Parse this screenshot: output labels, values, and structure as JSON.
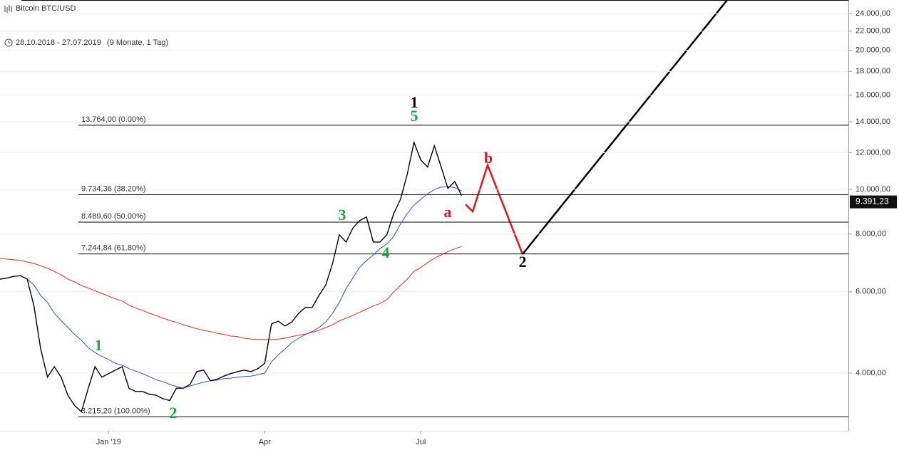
{
  "chart_data": {
    "type": "line",
    "title": "Bitcoin BTC/USD",
    "date_range": "28.10.2018 - 27.07.2019",
    "period": "(9 Monate, 1 Tag)",
    "log_scale": true,
    "grid": true,
    "categories": [
      null,
      null,
      null,
      null,
      null,
      null,
      null,
      null,
      null,
      null,
      null,
      null,
      null,
      null,
      null,
      null,
      "Jan '19",
      null,
      null,
      null,
      null,
      null,
      null,
      null,
      null,
      null,
      null,
      null,
      null,
      null,
      null,
      null,
      null,
      null,
      null,
      null,
      null,
      null,
      null,
      "Apr",
      null,
      null,
      null,
      null,
      null,
      null,
      null,
      null,
      null,
      null,
      null,
      null,
      null,
      null,
      null,
      null,
      null,
      null,
      null,
      null,
      null,
      null,
      "Jul",
      null,
      null,
      null,
      null,
      null,
      null
    ],
    "series": [
      {
        "color": "#000000",
        "values": [
          6390,
          6420,
          6480,
          6500,
          6390,
          5590,
          4510,
          3920,
          4130,
          3920,
          3580,
          3400,
          3300,
          3710,
          4130,
          3920,
          3990,
          4060,
          4130,
          3710,
          3650,
          3650,
          3600,
          3580,
          3520,
          3490,
          3710,
          3710,
          3780,
          4030,
          4060,
          3850,
          3880,
          3940,
          3990,
          4030,
          4060,
          4030,
          4090,
          4200,
          5110,
          5180,
          5060,
          5160,
          5390,
          5550,
          5550,
          5890,
          6210,
          6910,
          7970,
          7690,
          8250,
          8560,
          8710,
          7690,
          7690,
          7970,
          8860,
          9510,
          10770,
          12640,
          11570,
          11180,
          12420,
          11180,
          10040,
          10400,
          9690
        ]
      },
      {
        "color": "#2b4fe0",
        "values": [
          null,
          null,
          null,
          null,
          6390,
          6210,
          5890,
          5690,
          5390,
          5200,
          5020,
          4850,
          4710,
          4540,
          4430,
          4350,
          4280,
          4200,
          4160,
          4090,
          4040,
          3990,
          3930,
          3870,
          3830,
          3780,
          3740,
          3710,
          3750,
          3790,
          3820,
          3850,
          3860,
          3890,
          3900,
          3920,
          3930,
          3940,
          3970,
          4000,
          4230,
          4380,
          4510,
          4660,
          4760,
          4850,
          4920,
          5020,
          5160,
          5390,
          5690,
          6100,
          6430,
          6780,
          7010,
          7210,
          7440,
          7610,
          7910,
          8410,
          8860,
          9240,
          9510,
          9780,
          9990,
          10110,
          10140,
          10080,
          9930
        ]
      },
      {
        "color": "#e0301e",
        "values": [
          7090,
          7060,
          7040,
          7010,
          6960,
          6910,
          6830,
          6740,
          6640,
          6530,
          6390,
          6300,
          6190,
          6110,
          6030,
          5950,
          5870,
          5790,
          5730,
          5610,
          5530,
          5470,
          5390,
          5330,
          5260,
          5200,
          5150,
          5090,
          5040,
          4990,
          4950,
          4920,
          4880,
          4850,
          4810,
          4800,
          4760,
          4740,
          4730,
          4730,
          4730,
          4740,
          4760,
          4800,
          4830,
          4860,
          4900,
          4950,
          5020,
          5090,
          5190,
          5260,
          5330,
          5420,
          5500,
          5590,
          5660,
          5770,
          5990,
          6190,
          6390,
          6640,
          6770,
          6940,
          7090,
          7210,
          7330,
          7430,
          7520
        ]
      }
    ],
    "ylim": [
      3000,
      25700
    ],
    "yticks": [
      {
        "value": 4000,
        "label": "4.000,00"
      },
      {
        "value": 6000,
        "label": "6.000,00"
      },
      {
        "value": 8000,
        "label": "8.000,00"
      },
      {
        "value": 10000,
        "label": "10.000,00"
      },
      {
        "value": 12000,
        "label": "12.000,00"
      },
      {
        "value": 14000,
        "label": "14.000,00"
      },
      {
        "value": 16000,
        "label": "16.000,00"
      },
      {
        "value": 18000,
        "label": "18.000,00"
      },
      {
        "value": 20000,
        "label": "20.000,00"
      },
      {
        "value": 22000,
        "label": "22.000,00"
      },
      {
        "value": 24000,
        "label": "24.000,00"
      }
    ],
    "last_price": {
      "value": 9391.23,
      "label": "9.391,23"
    },
    "fib_levels": [
      {
        "value": 13764,
        "label": "13.764,00 (0.00%)"
      },
      {
        "value": 9734.36,
        "label": "9.734,36 (38.20%)"
      },
      {
        "value": 8489.6,
        "label": "8.489,60 (50.00%)"
      },
      {
        "value": 7244.84,
        "label": "7.244,84 (61.80%)"
      },
      {
        "value": 3215.2,
        "label": "3.215,20 (100.00%)"
      }
    ],
    "annotations": [
      {
        "text": "1",
        "color": "#000000"
      },
      {
        "text": "5",
        "color": "#22a03c"
      },
      {
        "text": "3",
        "color": "#22a03c"
      },
      {
        "text": "4",
        "color": "#22a03c"
      },
      {
        "text": "a",
        "color": "#e0141e"
      },
      {
        "text": "b",
        "color": "#e0141e"
      },
      {
        "text": "2",
        "color": "#000000"
      },
      {
        "text": "1",
        "color": "#22a03c"
      },
      {
        "text": "2",
        "color": "#22a03c"
      }
    ]
  }
}
